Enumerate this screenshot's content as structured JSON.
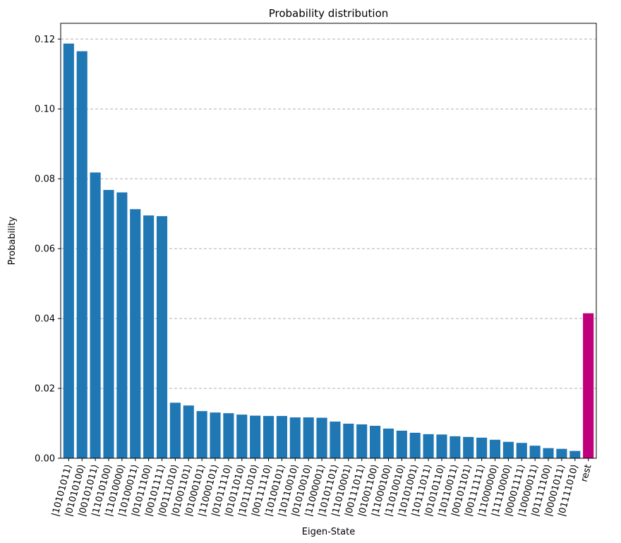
{
  "chart_data": {
    "type": "bar",
    "title": "Probability distribution",
    "xlabel": "Eigen-State",
    "ylabel": "Probability",
    "ylim": [
      0,
      0.1245
    ],
    "yticks": [
      0.0,
      0.02,
      0.04,
      0.06,
      0.08,
      0.1,
      0.12
    ],
    "ytick_labels": [
      "0.00",
      "0.02",
      "0.04",
      "0.06",
      "0.08",
      "0.10",
      "0.12"
    ],
    "grid": "y-dashed",
    "bar_color": "#1f77b4",
    "highlight_color": "#c0007a",
    "categories": [
      "|10101011⟩",
      "|01010100⟩",
      "|00101011⟩",
      "|11010100⟩",
      "|11010000⟩",
      "|10100011⟩",
      "|01011100⟩",
      "|00101111⟩",
      "|00111010⟩",
      "|01001101⟩",
      "|01000101⟩",
      "|11000101⟩",
      "|01011110⟩",
      "|01011010⟩",
      "|10111010⟩",
      "|00111110⟩",
      "|10100101⟩",
      "|10110010⟩",
      "|01010010⟩",
      "|11000001⟩",
      "|10101101⟩",
      "|11010001⟩",
      "|00111011⟩",
      "|01001100⟩",
      "|11000100⟩",
      "|11010010⟩",
      "|10101001⟩",
      "|10111011⟩",
      "|01010110⟩",
      "|10110011⟩",
      "|00101101⟩",
      "|00111111⟩",
      "|11000000⟩",
      "|11110000⟩",
      "|00001111⟩",
      "|10000011⟩",
      "|01111100⟩",
      "|00001011⟩",
      "|01111010⟩",
      "rest"
    ],
    "values": [
      0.1187,
      0.1165,
      0.0818,
      0.0768,
      0.0761,
      0.0713,
      0.0695,
      0.0693,
      0.0159,
      0.0151,
      0.0135,
      0.0131,
      0.0129,
      0.0125,
      0.0122,
      0.0121,
      0.0121,
      0.0117,
      0.0117,
      0.0116,
      0.0105,
      0.0099,
      0.0097,
      0.0093,
      0.0085,
      0.0079,
      0.0073,
      0.0069,
      0.0068,
      0.0063,
      0.0061,
      0.0059,
      0.0053,
      0.0047,
      0.0044,
      0.0036,
      0.0029,
      0.0027,
      0.0021,
      0.0415
    ],
    "highlight_index": 39
  }
}
